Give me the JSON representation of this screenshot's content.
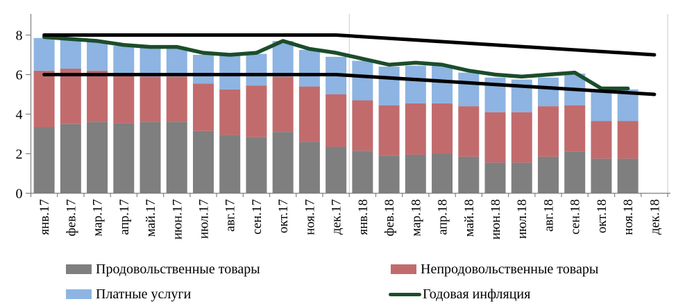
{
  "chart_data": {
    "type": "bar",
    "subtype": "stacked-bar-with-lines",
    "title": "",
    "xlabel": "",
    "ylabel": "",
    "ylim": [
      0,
      9.05
    ],
    "yticks": [
      "0",
      "2",
      "4",
      "6",
      "8"
    ],
    "grid": {
      "horizontal": false,
      "vertical_separators_at_boundaries": [
        12,
        24
      ]
    },
    "legend_position": "bottom",
    "categories": [
      "янв.17",
      "фев.17",
      "мар.17",
      "апр.17",
      "май.17",
      "июн.17",
      "июл.17",
      "авг.17",
      "сен.17",
      "окт.17",
      "ноя.17",
      "дек.17",
      "янв.18",
      "фев.18",
      "мар.18",
      "апр.18",
      "май.18",
      "июн.18",
      "июл.18",
      "авг.18",
      "сен.18",
      "окт.18",
      "ноя.18",
      "дек.18"
    ],
    "bar_series": [
      {
        "name": "Продовольственные товары",
        "color": "#7f7f7f",
        "values": [
          3.35,
          3.5,
          3.6,
          3.55,
          3.6,
          3.6,
          3.15,
          2.95,
          2.85,
          3.1,
          2.6,
          2.35,
          2.15,
          1.9,
          1.95,
          2.0,
          1.85,
          1.55,
          1.55,
          1.85,
          2.1,
          1.75,
          1.75,
          null
        ]
      },
      {
        "name": "Непродовольственные товары",
        "color": "#c26b6d",
        "values": [
          2.85,
          2.8,
          2.6,
          2.4,
          2.3,
          2.3,
          2.4,
          2.3,
          2.6,
          2.8,
          2.8,
          2.65,
          2.55,
          2.55,
          2.6,
          2.55,
          2.55,
          2.55,
          2.55,
          2.55,
          2.35,
          1.9,
          1.9,
          null
        ]
      },
      {
        "name": "Платные услуги",
        "color": "#8db4e2",
        "values": [
          1.65,
          1.45,
          1.45,
          1.5,
          1.5,
          1.5,
          1.45,
          1.75,
          1.6,
          1.8,
          1.85,
          1.9,
          2.0,
          1.95,
          1.9,
          1.9,
          1.7,
          1.75,
          1.65,
          1.45,
          1.6,
          1.6,
          1.6,
          null
        ]
      }
    ],
    "line_series": [
      {
        "name": "Годовая инфляция",
        "color": "#1b4d2b",
        "width": 5.5,
        "values": [
          7.9,
          7.8,
          7.7,
          7.5,
          7.4,
          7.4,
          7.1,
          7.0,
          7.1,
          7.7,
          7.3,
          7.1,
          6.8,
          6.5,
          6.6,
          6.5,
          6.2,
          6.0,
          5.9,
          6.0,
          6.1,
          5.3,
          5.3,
          null
        ]
      },
      {
        "id": "target-corridor-upper",
        "color": "#000000",
        "width": 5,
        "points": [
          [
            0,
            8.0
          ],
          [
            11,
            8.0
          ],
          [
            23,
            7.0
          ]
        ]
      },
      {
        "id": "target-corridor-lower",
        "color": "#000000",
        "width": 5,
        "points": [
          [
            0,
            6.0
          ],
          [
            11,
            6.0
          ],
          [
            23,
            5.0
          ]
        ]
      }
    ]
  },
  "legend": {
    "items": [
      {
        "label": "Продовольственные товары",
        "type": "box",
        "color": "#7f7f7f"
      },
      {
        "label": "Непродовольственные товары",
        "type": "box",
        "color": "#c26b6d"
      },
      {
        "label": "Платные услуги",
        "type": "box",
        "color": "#8db4e2"
      },
      {
        "label": "Годовая инфляция",
        "type": "line",
        "color": "#1b4d2b"
      }
    ]
  },
  "style": {
    "axis_color": "#808080",
    "separator_color": "#c9c9c9",
    "text_color": "#000000",
    "background": "#ffffff"
  }
}
